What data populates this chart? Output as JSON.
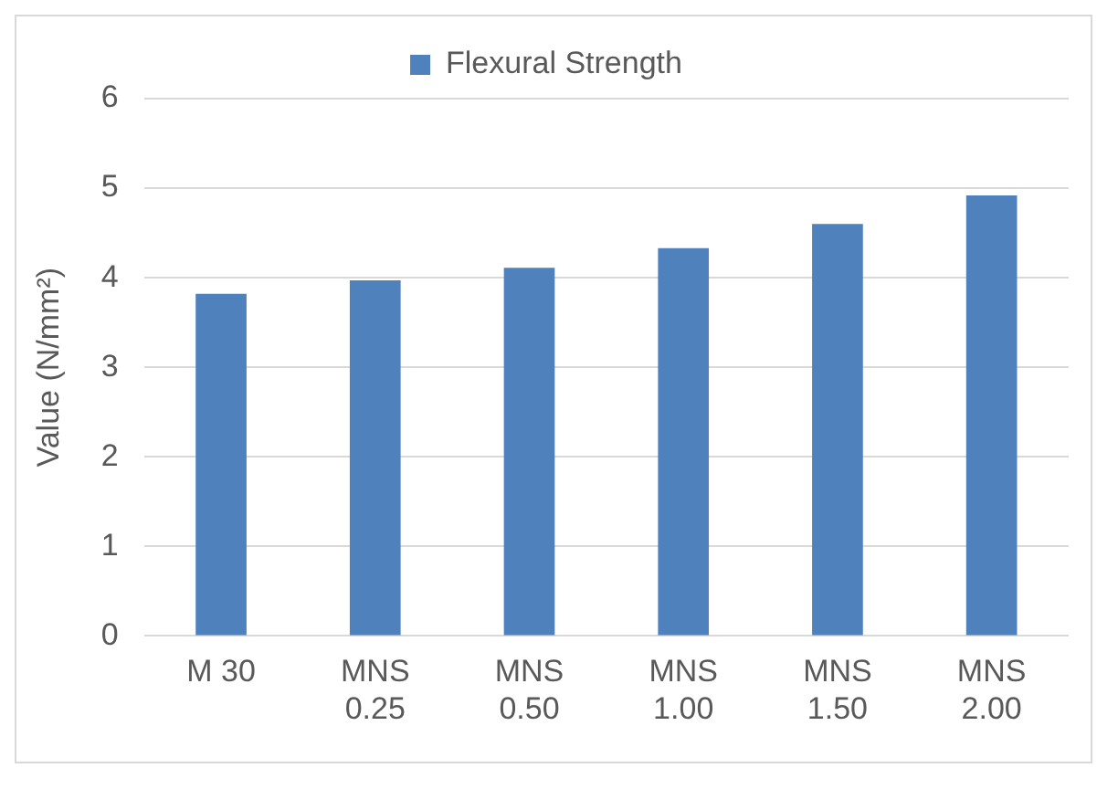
{
  "chart_data": {
    "type": "bar",
    "ylabel": "Value (N/mm²)",
    "categories": [
      "M 30",
      "MNS 0.25",
      "MNS 0.50",
      "MNS 1.00",
      "MNS 1.50",
      "MNS 2.00"
    ],
    "series": [
      {
        "name": "Flexural Strength",
        "color": "#4f81bd",
        "values": [
          3.82,
          3.97,
          4.11,
          4.33,
          4.6,
          4.92
        ]
      }
    ],
    "ylim": [
      0,
      6
    ],
    "yticks": [
      0,
      1,
      2,
      3,
      4,
      5,
      6
    ],
    "grid": "y",
    "legend": "top"
  }
}
